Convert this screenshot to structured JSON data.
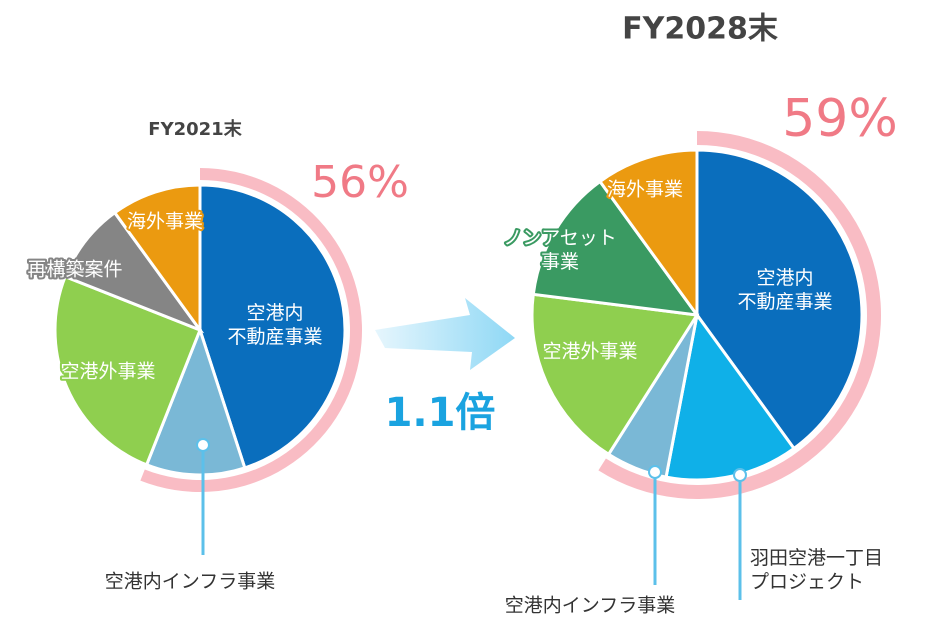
{
  "chart_data": [
    {
      "type": "pie",
      "title": "FY2021末",
      "categories": [
        "空港内\n不動産事業",
        "空港内インフラ事業",
        "空港外事業",
        "再構築案件",
        "海外事業"
      ],
      "values": [
        45,
        11,
        25,
        9,
        10
      ],
      "colors": [
        "#0a6ebd",
        "#7ab8d6",
        "#8fcf4f",
        "#858585",
        "#eb9a10"
      ],
      "highlight": {
        "value": 56,
        "label": "56%"
      }
    },
    {
      "type": "pie",
      "title": "FY2028末",
      "categories": [
        "空港内\n不動産事業",
        "羽田空港一丁目\nプロジェクト",
        "空港内インフラ事業",
        "空港外事業",
        "ノンアセット\n事業",
        "海外事業"
      ],
      "values": [
        40,
        13,
        6,
        18,
        13,
        10
      ],
      "colors": [
        "#0a6ebd",
        "#0fb0e8",
        "#7ab8d6",
        "#8fcf4f",
        "#3a9a62",
        "#eb9a10"
      ],
      "highlight": {
        "value": 59,
        "label": "59%"
      }
    }
  ],
  "growth_label": "1.1倍"
}
